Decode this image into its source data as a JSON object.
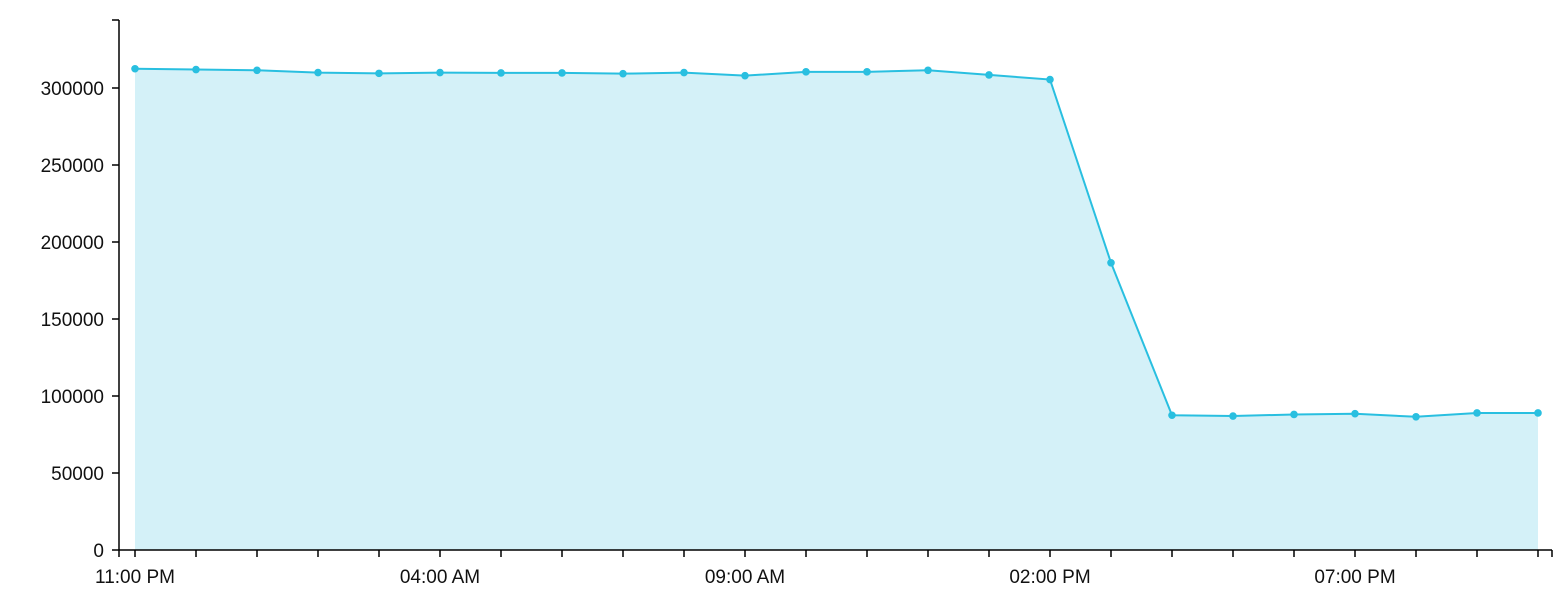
{
  "chart_data": {
    "type": "area",
    "title": "",
    "xlabel": "",
    "ylabel": "",
    "ylim": [
      0,
      340000
    ],
    "y_ticks": [
      0,
      50000,
      100000,
      150000,
      200000,
      250000,
      300000
    ],
    "x_tick_labels": [
      "11:00 PM",
      "04:00 AM",
      "09:00 AM",
      "02:00 PM",
      "07:00 PM"
    ],
    "x_labeled_tick_indices": [
      0,
      5,
      10,
      15,
      20
    ],
    "x_tick_count": 24,
    "grid": false,
    "legend": "none",
    "colors": {
      "line": "#29bfe0",
      "fill": "#d4f1f8",
      "axis": "#000000"
    },
    "series": [
      {
        "values": [
          312500,
          312000,
          311500,
          310000,
          309500,
          310000,
          309800,
          309800,
          309300,
          310000,
          308000,
          310500,
          310500,
          311500,
          308500,
          305500,
          186500,
          87500,
          87000,
          88000,
          88500,
          86500,
          89000,
          89000
        ]
      }
    ]
  }
}
